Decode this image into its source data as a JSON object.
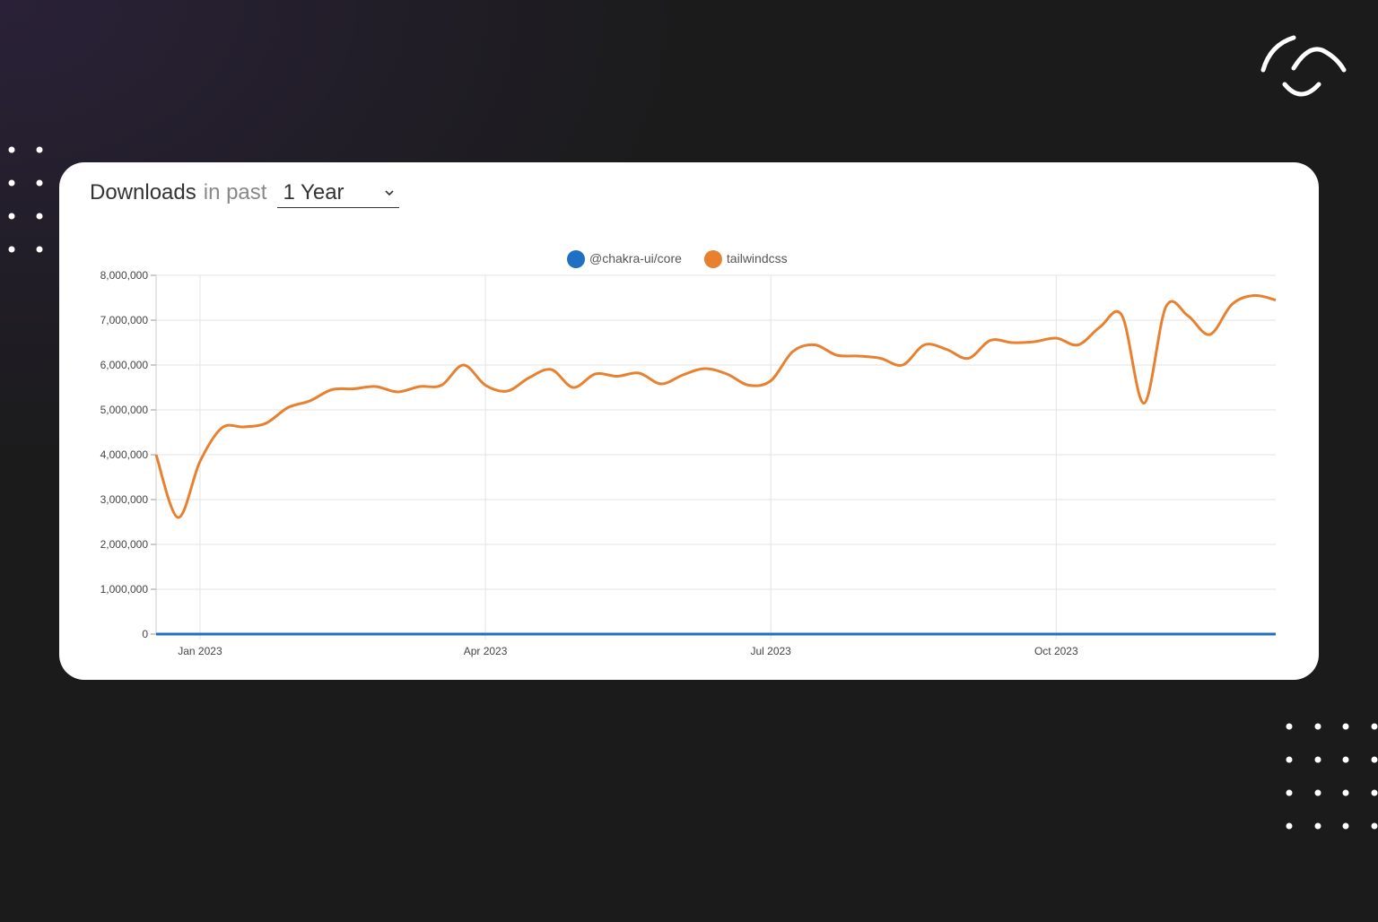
{
  "header": {
    "title": "Downloads",
    "subtitle": "in past",
    "range": "1 Year"
  },
  "chart_data": {
    "type": "line",
    "categories": [
      null,
      null,
      "Jan 2023",
      null,
      null,
      null,
      null,
      null,
      null,
      null,
      null,
      null,
      null,
      null,
      null,
      "Apr 2023",
      null,
      null,
      null,
      null,
      null,
      null,
      null,
      null,
      null,
      null,
      null,
      null,
      "Jul 2023",
      null,
      null,
      null,
      null,
      null,
      null,
      null,
      null,
      null,
      null,
      null,
      null,
      "Oct 2023",
      null,
      null,
      null,
      null,
      null,
      null,
      null,
      null,
      null,
      null
    ],
    "series": [
      {
        "name": "@chakra-ui/core",
        "color": "#1f6fc5",
        "values": [
          0,
          0,
          0,
          0,
          0,
          0,
          0,
          0,
          0,
          0,
          0,
          0,
          0,
          0,
          0,
          0,
          0,
          0,
          0,
          0,
          0,
          0,
          0,
          0,
          0,
          0,
          0,
          0,
          0,
          0,
          0,
          0,
          0,
          0,
          0,
          0,
          0,
          0,
          0,
          0,
          0,
          0,
          0,
          0,
          0,
          0,
          0,
          0,
          0,
          0,
          0,
          0
        ]
      },
      {
        "name": "tailwindcss",
        "color": "#e8812f",
        "values": [
          4000000,
          2600000,
          3850000,
          4600000,
          4620000,
          4700000,
          5050000,
          5200000,
          5450000,
          5470000,
          5520000,
          5400000,
          5520000,
          5550000,
          6000000,
          5550000,
          5420000,
          5720000,
          5900000,
          5500000,
          5800000,
          5750000,
          5820000,
          5580000,
          5780000,
          5920000,
          5800000,
          5550000,
          5650000,
          6300000,
          6450000,
          6220000,
          6200000,
          6150000,
          6000000,
          6450000,
          6350000,
          6150000,
          6550000,
          6500000,
          6520000,
          6600000,
          6450000,
          6850000,
          7100000,
          5150000,
          7300000,
          7100000,
          6680000,
          7350000,
          7550000,
          7450000
        ]
      }
    ],
    "ylim": [
      0,
      8000000
    ],
    "yticks": [
      0,
      {
        "value": 1000000,
        "label": "1,000,000"
      },
      {
        "value": 2000000,
        "label": "2,000,000"
      },
      {
        "value": 3000000,
        "label": "3,000,000"
      },
      {
        "value": 4000000,
        "label": "4,000,000"
      },
      {
        "value": 5000000,
        "label": "5,000,000"
      },
      {
        "value": 6000000,
        "label": "6,000,000"
      },
      {
        "value": 7000000,
        "label": "7,000,000"
      },
      {
        "value": 8000000,
        "label": "8,000,000"
      }
    ],
    "grid": true
  }
}
